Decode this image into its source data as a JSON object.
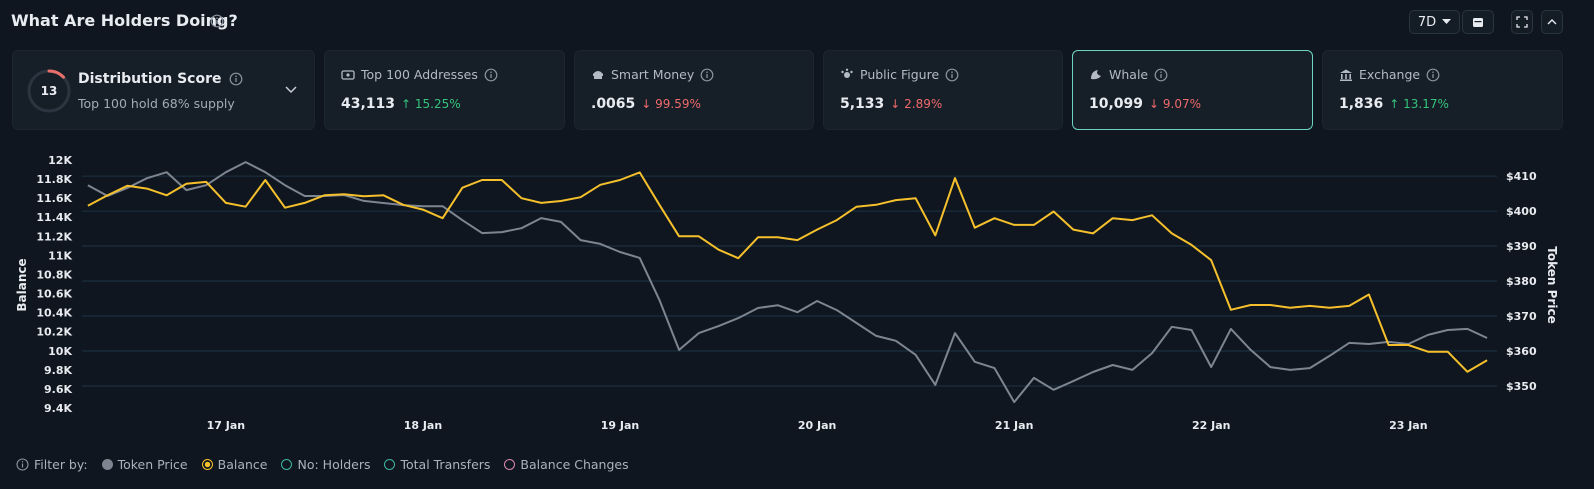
{
  "header": {
    "title": "What Are Holders Doing?",
    "range": "7D"
  },
  "distribution": {
    "score": 13,
    "title": "Distribution Score",
    "subtitle": "Top 100 hold 68% supply"
  },
  "cards": [
    {
      "label": "Top 100 Addresses",
      "value": "43,113",
      "change": "↑ 15.25%"
    },
    {
      "label": "Smart Money",
      "value": ".0065",
      "change": "↓ 99.59%"
    },
    {
      "label": "Public Figure",
      "value": "5,133",
      "change": "↓ 2.89%"
    },
    {
      "label": "Whale",
      "value": "10,099",
      "change": "↓ 9.07%"
    },
    {
      "label": "Exchange",
      "value": "1,836",
      "change": "↑ 13.17%"
    }
  ],
  "chart_data": {
    "type": "line",
    "y_label": "Balance",
    "y2_label": "Token Price",
    "grid": true,
    "xlim": [
      16.27,
      23.45
    ],
    "xticks": [
      {
        "value": 17,
        "label": "17 Jan"
      },
      {
        "value": 18,
        "label": "18 Jan"
      },
      {
        "value": 19,
        "label": "19 Jan"
      },
      {
        "value": 20,
        "label": "20 Jan"
      },
      {
        "value": 21,
        "label": "21 Jan"
      },
      {
        "value": 22,
        "label": "22 Jan"
      },
      {
        "value": 23,
        "label": "23 Jan"
      }
    ],
    "ylim": [
      9400,
      12000
    ],
    "yticks": [
      {
        "value": 9400,
        "label": "9.4K"
      },
      {
        "value": 9600,
        "label": "9.6K"
      },
      {
        "value": 9800,
        "label": "9.8K"
      },
      {
        "value": 10000,
        "label": "10K"
      },
      {
        "value": 10200,
        "label": "10.2K"
      },
      {
        "value": 10400,
        "label": "10.4K"
      },
      {
        "value": 10600,
        "label": "10.6K"
      },
      {
        "value": 10800,
        "label": "10.8K"
      },
      {
        "value": 11000,
        "label": "11K"
      },
      {
        "value": 11200,
        "label": "11.2K"
      },
      {
        "value": 11400,
        "label": "11.4K"
      },
      {
        "value": 11600,
        "label": "11.6K"
      },
      {
        "value": 11800,
        "label": "11.8K"
      },
      {
        "value": 12000,
        "label": "12K"
      }
    ],
    "y2lim": [
      343.7,
      414.6
    ],
    "y2ticks": [
      {
        "value": 350,
        "label": "$350"
      },
      {
        "value": 360,
        "label": "$360"
      },
      {
        "value": 370,
        "label": "$370"
      },
      {
        "value": 380,
        "label": "$380"
      },
      {
        "value": 390,
        "label": "$390"
      },
      {
        "value": 400,
        "label": "$400"
      },
      {
        "value": 410,
        "label": "$410"
      }
    ],
    "x": [
      16.3,
      16.4,
      16.5,
      16.6,
      16.7,
      16.8,
      16.9,
      17.0,
      17.1,
      17.2,
      17.3,
      17.4,
      17.5,
      17.6,
      17.7,
      17.8,
      17.9,
      18.0,
      18.1,
      18.2,
      18.3,
      18.4,
      18.5,
      18.6,
      18.7,
      18.8,
      18.9,
      19.0,
      19.1,
      19.2,
      19.3,
      19.4,
      19.5,
      19.6,
      19.7,
      19.8,
      19.9,
      20.0,
      20.1,
      20.2,
      20.3,
      20.4,
      20.5,
      20.6,
      20.7,
      20.8,
      20.9,
      21.0,
      21.1,
      21.2,
      21.3,
      21.4,
      21.5,
      21.6,
      21.7,
      21.8,
      21.9,
      22.0,
      22.1,
      22.2,
      22.3,
      22.4,
      22.5,
      22.6,
      22.7,
      22.8,
      22.9,
      23.0,
      23.1,
      23.2,
      23.3,
      23.4
    ],
    "series": [
      {
        "name": "Token Price",
        "color": "#7d8591",
        "axis": "y2",
        "values": [
          407.4,
          404.3,
          406.6,
          409.4,
          411.1,
          406.0,
          407.4,
          411.1,
          414.0,
          411.1,
          407.4,
          404.3,
          404.3,
          404.6,
          402.9,
          402.3,
          401.7,
          401.4,
          401.4,
          397.4,
          393.7,
          394.0,
          395.1,
          398.0,
          396.9,
          391.7,
          390.6,
          388.3,
          386.6,
          374.6,
          360.3,
          365.1,
          367.1,
          369.4,
          372.3,
          373.1,
          371.1,
          374.3,
          371.7,
          368.0,
          364.3,
          362.9,
          358.9,
          350.3,
          365.1,
          356.9,
          355.1,
          345.4,
          352.3,
          348.9,
          351.4,
          354.0,
          356.0,
          354.6,
          359.4,
          366.9,
          366.0,
          355.4,
          366.3,
          360.3,
          355.4,
          354.6,
          355.1,
          358.6,
          362.3,
          362.0,
          362.6,
          362.0,
          364.6,
          366.0,
          366.3,
          363.7
        ]
      },
      {
        "name": "Balance",
        "color": "#f5c02c",
        "axis": "y",
        "values": [
          11520,
          11630,
          11730,
          11700,
          11630,
          11750,
          11770,
          11550,
          11510,
          11790,
          11500,
          11550,
          11630,
          11640,
          11620,
          11630,
          11530,
          11480,
          11390,
          11710,
          11790,
          11790,
          11600,
          11550,
          11570,
          11610,
          11740,
          11790,
          11870,
          11530,
          11200,
          11200,
          11060,
          10970,
          11190,
          11190,
          11160,
          11270,
          11370,
          11510,
          11530,
          11580,
          11600,
          11210,
          11810,
          11290,
          11390,
          11320,
          11320,
          11460,
          11270,
          11230,
          11390,
          11370,
          11420,
          11230,
          11110,
          10950,
          10430,
          10480,
          10480,
          10450,
          10470,
          10450,
          10470,
          10590,
          10060,
          10060,
          9990,
          9990,
          9780,
          9900
        ]
      }
    ]
  },
  "filter": {
    "label": "Filter by:",
    "options": [
      "No: Holders",
      "Total Transfers",
      "Balance Changes"
    ]
  }
}
